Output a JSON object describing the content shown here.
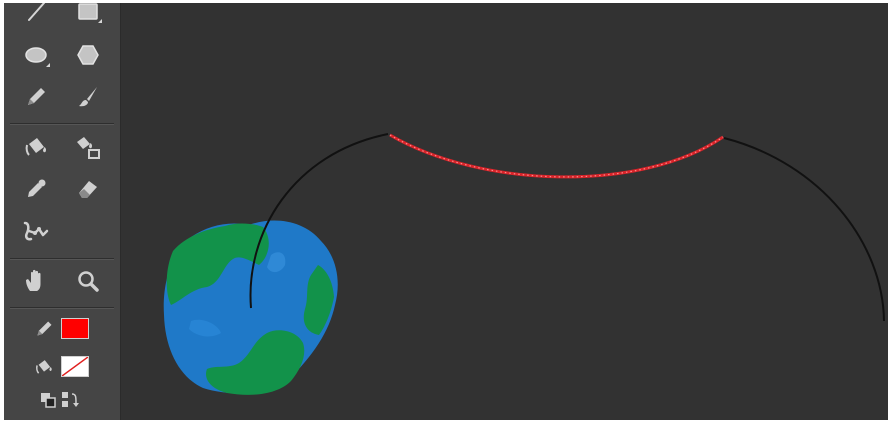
{
  "colors": {
    "app_background": "#323232",
    "toolbar_background": "#454545",
    "stroke_color": "#ff0000",
    "fill_color": "none",
    "path_line": "#111111",
    "selected_segment": "#d9242a",
    "earth_ocean": "#1f79c8",
    "earth_land": "#12924a"
  },
  "toolbar": {
    "tools": [
      {
        "name": "line-tool",
        "icon": "line-icon"
      },
      {
        "name": "rectangle-tool",
        "icon": "rectangle-icon"
      },
      {
        "name": "oval-tool",
        "icon": "oval-icon"
      },
      {
        "name": "polystar-tool",
        "icon": "hexagon-icon"
      },
      {
        "name": "pencil-tool",
        "icon": "pencil-icon"
      },
      {
        "name": "brush-tool",
        "icon": "brush-icon"
      },
      {
        "name": "paint-bucket-tool",
        "icon": "paint-bucket-icon"
      },
      {
        "name": "ink-bottle-tool",
        "icon": "ink-bottle-icon"
      },
      {
        "name": "eyedropper-tool",
        "icon": "eyedropper-icon"
      },
      {
        "name": "eraser-tool",
        "icon": "eraser-icon"
      },
      {
        "name": "bone-tool",
        "icon": "bone-icon"
      },
      {
        "name": "hand-tool",
        "icon": "hand-icon"
      },
      {
        "name": "zoom-tool",
        "icon": "magnifier-icon"
      },
      {
        "name": "stroke-color",
        "icon": "pencil-icon"
      },
      {
        "name": "fill-color",
        "icon": "paint-bucket-icon"
      },
      {
        "name": "default-colors",
        "icon": "default-colors-icon"
      },
      {
        "name": "swap-colors",
        "icon": "swap-colors-icon"
      }
    ]
  },
  "stage": {
    "objects": [
      "motion-path",
      "selected-path-segment",
      "earth-graphic"
    ]
  }
}
